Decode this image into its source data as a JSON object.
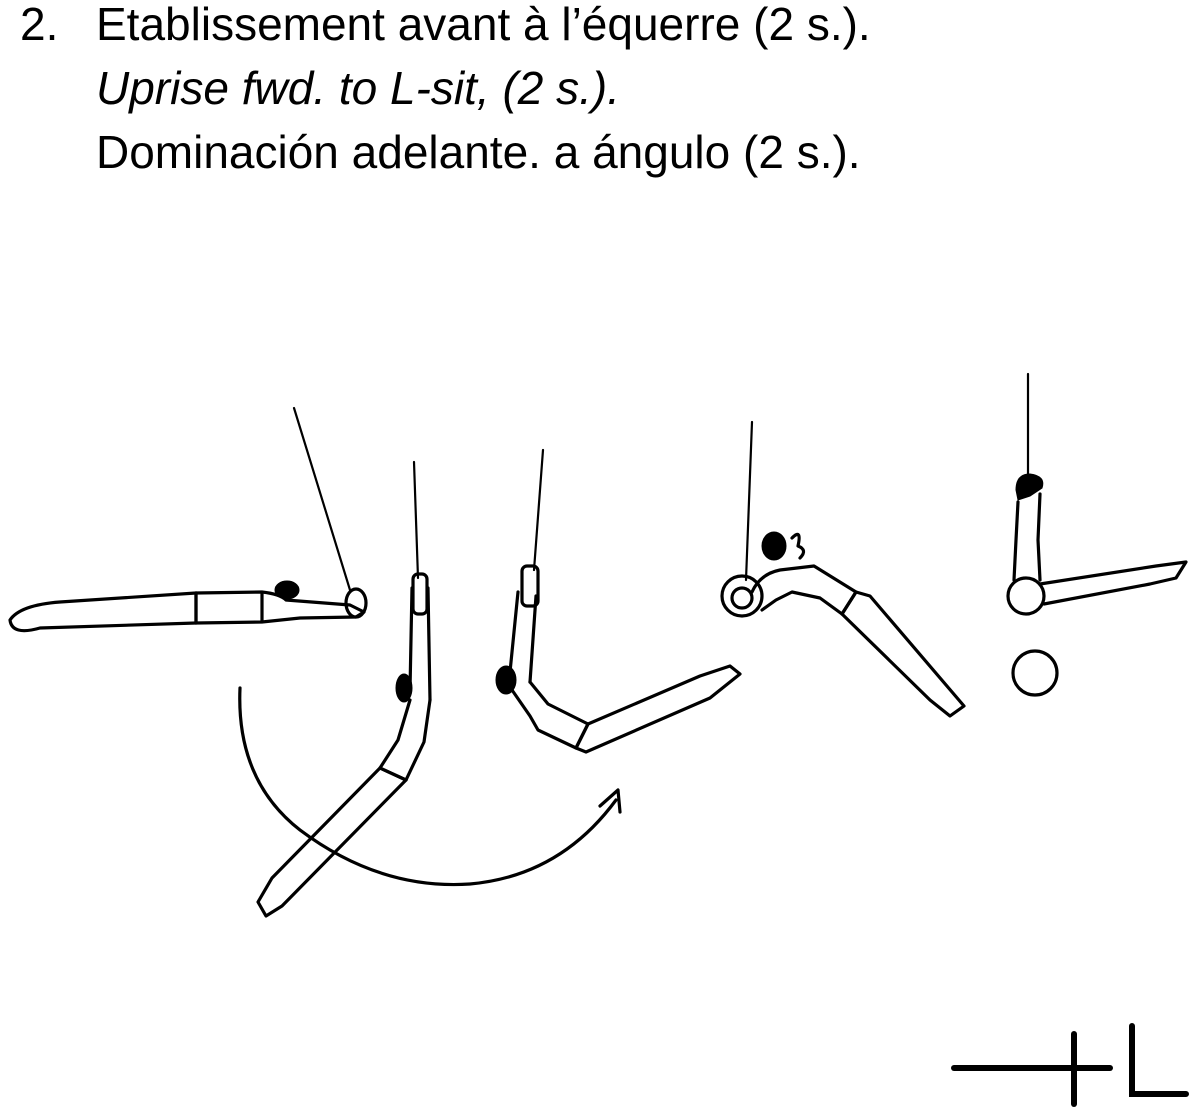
{
  "caption": {
    "number": "2.",
    "french": "Etablissement avant à l’équerre (2 s.).",
    "english": "Uprise fwd. to L-sit, (2 s.).",
    "spanish": "Dominación adelante. a ángulo (2 s.)."
  },
  "diagram": {
    "figures": [
      "figure-1-front-support-swing",
      "figure-2-hang-legs-down",
      "figure-3-pike-hang",
      "figure-4-uprise",
      "figure-5-l-sit"
    ],
    "symbols": [
      "rotation-arrow",
      "hold-circle",
      "value-symbol"
    ]
  }
}
